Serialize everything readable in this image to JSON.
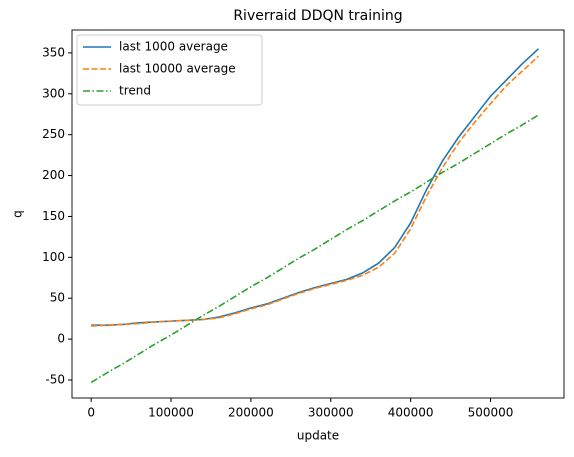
{
  "chart_data": {
    "type": "line",
    "title": "Riverraid DDQN training",
    "xlabel": "update",
    "ylabel": "q",
    "x": [
      0,
      20000,
      40000,
      60000,
      80000,
      100000,
      120000,
      140000,
      160000,
      180000,
      200000,
      220000,
      240000,
      260000,
      280000,
      300000,
      320000,
      340000,
      360000,
      380000,
      400000,
      420000,
      440000,
      460000,
      480000,
      500000,
      520000,
      540000,
      560000
    ],
    "series": [
      {
        "name": "last 1000 average",
        "color": "#1f77b4",
        "linestyle": "solid",
        "values": [
          17,
          17,
          18,
          20,
          21,
          22,
          23,
          24,
          27,
          32,
          38,
          43,
          50,
          57,
          63,
          68,
          73,
          81,
          93,
          112,
          142,
          183,
          218,
          247,
          272,
          297,
          317,
          337,
          355
        ]
      },
      {
        "name": "last 10000 average",
        "color": "#ff7f0e",
        "linestyle": "dashed",
        "values": [
          16,
          17,
          18,
          19,
          21,
          22,
          23,
          24,
          26,
          31,
          37,
          42,
          49,
          56,
          62,
          67,
          72,
          78,
          88,
          105,
          135,
          175,
          210,
          240,
          265,
          288,
          310,
          328,
          346
        ]
      },
      {
        "name": "trend",
        "color": "#2ca02c",
        "linestyle": "dashdot",
        "values": [
          -53,
          -41,
          -30,
          -18,
          -6,
          5,
          17,
          29,
          40,
          52,
          64,
          75,
          87,
          99,
          110,
          122,
          134,
          145,
          157,
          169,
          180,
          192,
          204,
          215,
          227,
          239,
          251,
          262,
          274
        ]
      }
    ],
    "xlim": [
      -24000,
      592000
    ],
    "xticks": [
      0,
      100000,
      200000,
      300000,
      400000,
      500000
    ],
    "ylim": [
      -72,
      378
    ],
    "yticks": [
      -50,
      0,
      50,
      100,
      150,
      200,
      250,
      300,
      350
    ],
    "legend": "upper left"
  }
}
